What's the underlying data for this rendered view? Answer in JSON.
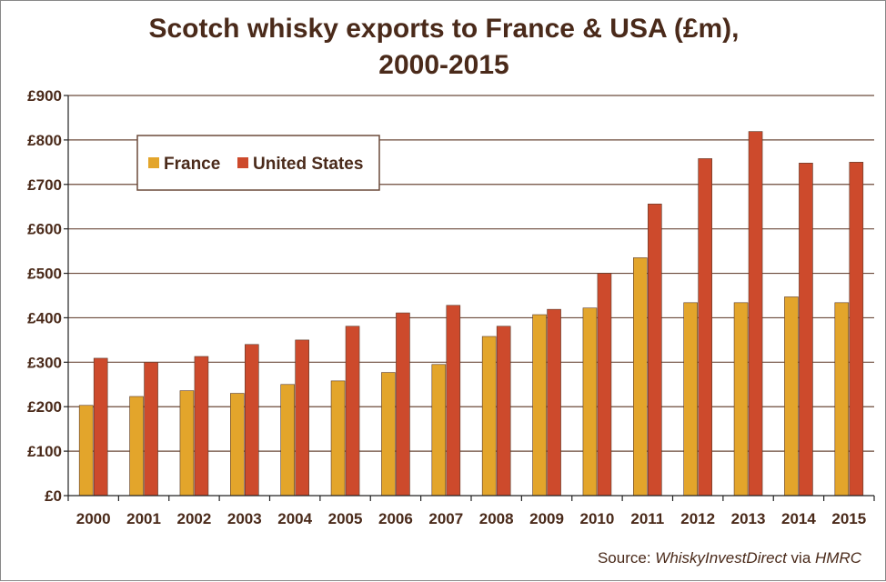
{
  "chart_data": {
    "type": "bar",
    "title_line1": "Scotch whisky exports to France & USA (£m),",
    "title_line2": "2000-2015",
    "categories": [
      "2000",
      "2001",
      "2002",
      "2003",
      "2004",
      "2005",
      "2006",
      "2007",
      "2008",
      "2009",
      "2010",
      "2011",
      "2012",
      "2013",
      "2014",
      "2015"
    ],
    "series": [
      {
        "name": "France",
        "color": "#e3a52b",
        "values": [
          203,
          223,
          236,
          230,
          250,
          258,
          277,
          295,
          358,
          407,
          422,
          535,
          434,
          434,
          447,
          434
        ]
      },
      {
        "name": "United States",
        "color": "#cd4a2c",
        "values": [
          309,
          300,
          313,
          340,
          350,
          381,
          411,
          428,
          381,
          419,
          500,
          656,
          758,
          819,
          748,
          750
        ]
      }
    ],
    "y_ticks": [
      "£0",
      "£100",
      "£200",
      "£300",
      "£400",
      "£500",
      "£600",
      "£700",
      "£800",
      "£900"
    ],
    "ylim": [
      0,
      900
    ],
    "y_step": 100,
    "grid": true,
    "legend_position": "top-left",
    "source": {
      "prefix": "Source: ",
      "name": "WhiskyInvestDirect",
      "middle": " via ",
      "org": "HMRC"
    },
    "colors": {
      "text": "#4a2a1a",
      "grid": "#6b4a3a",
      "axis": "#222222"
    }
  }
}
